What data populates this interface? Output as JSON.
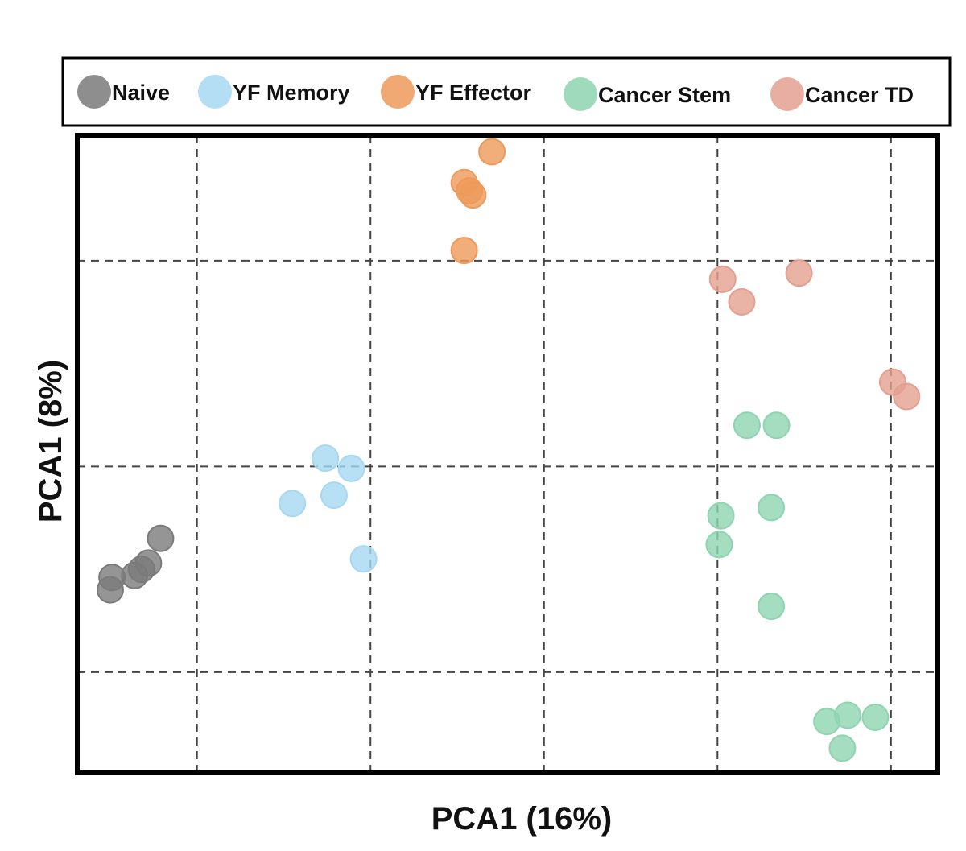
{
  "chart_data": {
    "type": "scatter",
    "title": "",
    "xlabel": "PCA1 (16%)",
    "ylabel": "PCA1 (8%)",
    "xlim": [
      0.31,
      5.27
    ],
    "ylim": [
      0.51,
      3.61
    ],
    "xgrid": [
      1,
      2,
      3,
      4,
      5
    ],
    "ygrid": [
      1,
      2,
      3
    ],
    "grid": true,
    "legend_placement": "top",
    "series": [
      {
        "name": "Naive",
        "color": "#7a7a7a",
        "x": [
          0.79,
          0.72,
          0.68,
          0.64,
          0.51,
          0.5
        ],
        "y": [
          1.65,
          1.53,
          1.5,
          1.47,
          1.46,
          1.4
        ]
      },
      {
        "name": "YF Memory",
        "color": "#a6d8f2",
        "x": [
          1.74,
          1.89,
          1.79,
          1.55,
          1.96
        ],
        "y": [
          2.04,
          1.99,
          1.86,
          1.82,
          1.55
        ]
      },
      {
        "name": "YF Effector",
        "color": "#ee9a5a",
        "x": [
          2.7,
          2.54,
          2.57,
          2.59,
          2.54
        ],
        "y": [
          3.53,
          3.38,
          3.34,
          3.32,
          3.05
        ]
      },
      {
        "name": "Cancer Stem",
        "color": "#8fd4b0",
        "x": [
          4.17,
          4.34,
          4.31,
          4.02,
          4.01,
          4.31,
          4.63,
          4.75,
          4.91,
          4.72
        ],
        "y": [
          2.2,
          2.2,
          1.8,
          1.76,
          1.62,
          1.32,
          0.76,
          0.79,
          0.78,
          0.63
        ]
      },
      {
        "name": "Cancer TD",
        "color": "#e3a090",
        "x": [
          4.03,
          4.47,
          4.14,
          5.01,
          5.09
        ],
        "y": [
          2.91,
          2.94,
          2.8,
          2.41,
          2.34
        ]
      }
    ]
  }
}
